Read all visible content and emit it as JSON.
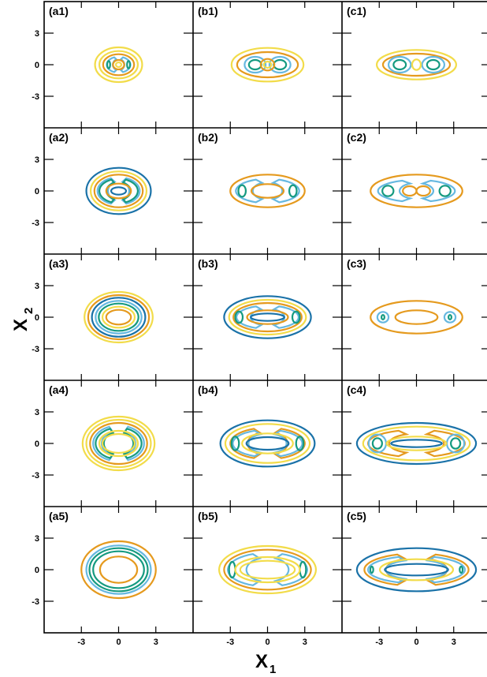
{
  "chart_data": {
    "type": "contour",
    "xlabel": "X",
    "xlabel_sub": "1",
    "ylabel": "X",
    "ylabel_sub": "2",
    "x_ticks": [
      "-3",
      "0",
      "3"
    ],
    "y_ticks": [
      "3",
      "0",
      "-3"
    ],
    "xlim": [
      -6,
      6
    ],
    "ylim": [
      -6,
      6
    ],
    "colors": {
      "blue": "#1a72a8",
      "light_blue": "#66b8e0",
      "green": "#159a80",
      "yellow": "#f2dc4a",
      "orange": "#e59a1e"
    },
    "panels": [
      {
        "label": "(a1)",
        "contours": [
          {
            "c": "yellow",
            "k": "e",
            "cx": 0,
            "cy": 0,
            "rx": 1.9,
            "ry": 1.65
          },
          {
            "c": "yellow",
            "k": "e",
            "cx": 0,
            "cy": 0,
            "rx": 1.55,
            "ry": 1.3
          },
          {
            "c": "orange",
            "k": "e",
            "cx": 0,
            "cy": 0,
            "rx": 1.25,
            "ry": 1.0
          },
          {
            "c": "light_blue",
            "k": "cres",
            "cx": 0,
            "cy": 0,
            "rx": 0.95,
            "ry": 0.75,
            "ir": 0.55
          },
          {
            "c": "green",
            "k": "e",
            "cx": -0.8,
            "cy": 0,
            "rx": 0.12,
            "ry": 0.35
          },
          {
            "c": "green",
            "k": "e",
            "cx": 0.8,
            "cy": 0,
            "rx": 0.12,
            "ry": 0.35
          },
          {
            "c": "orange",
            "k": "e",
            "cx": 0,
            "cy": 0,
            "rx": 0.45,
            "ry": 0.45
          },
          {
            "c": "yellow",
            "k": "e",
            "cx": 0,
            "cy": 0,
            "rx": 0.22,
            "ry": 0.22
          }
        ]
      },
      {
        "label": "(b1)",
        "contours": [
          {
            "c": "yellow",
            "k": "e",
            "cx": 0,
            "cy": 0,
            "rx": 2.9,
            "ry": 1.6
          },
          {
            "c": "orange",
            "k": "e",
            "cx": 0,
            "cy": 0,
            "rx": 2.45,
            "ry": 1.2
          },
          {
            "c": "light_blue",
            "k": "e",
            "cx": -1.0,
            "cy": 0,
            "rx": 0.85,
            "ry": 0.75
          },
          {
            "c": "light_blue",
            "k": "e",
            "cx": 1.0,
            "cy": 0,
            "rx": 0.85,
            "ry": 0.75
          },
          {
            "c": "green",
            "k": "e",
            "cx": -1.0,
            "cy": 0,
            "rx": 0.5,
            "ry": 0.45
          },
          {
            "c": "green",
            "k": "e",
            "cx": 1.0,
            "cy": 0,
            "rx": 0.5,
            "ry": 0.45
          },
          {
            "c": "orange",
            "k": "e",
            "cx": 0,
            "cy": 0,
            "rx": 0.55,
            "ry": 0.55
          },
          {
            "c": "yellow",
            "k": "e",
            "cx": 0,
            "cy": 0,
            "rx": 0.3,
            "ry": 0.3
          }
        ]
      },
      {
        "label": "(c1)",
        "contours": [
          {
            "c": "yellow",
            "k": "e",
            "cx": 0,
            "cy": 0,
            "rx": 3.2,
            "ry": 1.4
          },
          {
            "c": "orange",
            "k": "e",
            "cx": 0,
            "cy": 0,
            "rx": 2.7,
            "ry": 1.05
          },
          {
            "c": "light_blue",
            "k": "e",
            "cx": -1.35,
            "cy": 0,
            "rx": 0.9,
            "ry": 0.75
          },
          {
            "c": "light_blue",
            "k": "e",
            "cx": 1.35,
            "cy": 0,
            "rx": 0.9,
            "ry": 0.75
          },
          {
            "c": "green",
            "k": "e",
            "cx": -1.35,
            "cy": 0,
            "rx": 0.5,
            "ry": 0.45
          },
          {
            "c": "green",
            "k": "e",
            "cx": 1.35,
            "cy": 0,
            "rx": 0.5,
            "ry": 0.45
          },
          {
            "c": "yellow",
            "k": "e",
            "cx": 0,
            "cy": 0,
            "rx": 0.35,
            "ry": 0.5
          }
        ]
      },
      {
        "label": "(a2)",
        "contours": [
          {
            "c": "blue",
            "k": "e",
            "cx": 0,
            "cy": 0,
            "rx": 2.6,
            "ry": 2.2
          },
          {
            "c": "yellow",
            "k": "e",
            "cx": 0,
            "cy": 0,
            "rx": 2.25,
            "ry": 1.85
          },
          {
            "c": "orange",
            "k": "e",
            "cx": 0,
            "cy": 0,
            "rx": 1.95,
            "ry": 1.55
          },
          {
            "c": "light_blue",
            "k": "cres",
            "cx": 0,
            "cy": 0,
            "rx": 1.7,
            "ry": 1.3,
            "ir": 1.0
          },
          {
            "c": "green",
            "k": "cres",
            "cx": 0,
            "cy": 0,
            "rx": 1.55,
            "ry": 1.15,
            "ir": 1.15
          },
          {
            "c": "orange",
            "k": "e",
            "cx": 0,
            "cy": 0,
            "rx": 1.0,
            "ry": 0.7
          },
          {
            "c": "blue",
            "k": "e",
            "cx": 0,
            "cy": 0,
            "rx": 0.6,
            "ry": 0.35
          }
        ]
      },
      {
        "label": "(b2)",
        "contours": [
          {
            "c": "orange",
            "k": "e",
            "cx": 0,
            "cy": 0,
            "rx": 3.0,
            "ry": 1.55
          },
          {
            "c": "light_blue",
            "k": "cres",
            "cx": 0,
            "cy": 0,
            "rx": 2.55,
            "ry": 1.15,
            "ir": 1.4
          },
          {
            "c": "green",
            "k": "e",
            "cx": -2.05,
            "cy": 0,
            "rx": 0.3,
            "ry": 0.55
          },
          {
            "c": "green",
            "k": "e",
            "cx": 2.05,
            "cy": 0,
            "rx": 0.3,
            "ry": 0.55
          },
          {
            "c": "orange",
            "k": "e",
            "cx": 0,
            "cy": 0,
            "rx": 1.3,
            "ry": 0.65
          }
        ]
      },
      {
        "label": "(c2)",
        "contours": [
          {
            "c": "orange",
            "k": "e",
            "cx": 0,
            "cy": 0,
            "rx": 3.7,
            "ry": 1.55
          },
          {
            "c": "light_blue",
            "k": "cres",
            "cx": 0,
            "cy": 0,
            "rx": 3.1,
            "ry": 1.05,
            "ir": 1.6
          },
          {
            "c": "green",
            "k": "e",
            "cx": -2.3,
            "cy": 0,
            "rx": 0.45,
            "ry": 0.5
          },
          {
            "c": "green",
            "k": "e",
            "cx": 2.3,
            "cy": 0,
            "rx": 0.45,
            "ry": 0.5
          },
          {
            "c": "orange",
            "k": "e",
            "cx": -0.55,
            "cy": 0,
            "rx": 0.55,
            "ry": 0.45
          },
          {
            "c": "orange",
            "k": "e",
            "cx": 0.55,
            "cy": 0,
            "rx": 0.55,
            "ry": 0.45
          }
        ]
      },
      {
        "label": "(a3)",
        "contours": [
          {
            "c": "yellow",
            "k": "e",
            "cx": 0,
            "cy": 0,
            "rx": 2.75,
            "ry": 2.4
          },
          {
            "c": "orange",
            "k": "e",
            "cx": 0,
            "cy": 0,
            "rx": 2.45,
            "ry": 2.1
          },
          {
            "c": "blue",
            "k": "e",
            "cx": 0,
            "cy": 0,
            "rx": 2.15,
            "ry": 1.85
          },
          {
            "c": "light_blue",
            "k": "e",
            "cx": 0,
            "cy": 0,
            "rx": 1.85,
            "ry": 1.55
          },
          {
            "c": "green",
            "k": "e",
            "cx": 0,
            "cy": 0,
            "rx": 1.6,
            "ry": 1.3
          },
          {
            "c": "yellow",
            "k": "e",
            "cx": 0,
            "cy": 0,
            "rx": 1.3,
            "ry": 1.0
          },
          {
            "c": "orange",
            "k": "e",
            "cx": 0,
            "cy": 0,
            "rx": 1.0,
            "ry": 0.7
          }
        ]
      },
      {
        "label": "(b3)",
        "contours": [
          {
            "c": "blue",
            "k": "e",
            "cx": 0,
            "cy": 0,
            "rx": 3.5,
            "ry": 2.0
          },
          {
            "c": "yellow",
            "k": "e",
            "cx": 0,
            "cy": 0,
            "rx": 3.1,
            "ry": 1.65
          },
          {
            "c": "orange",
            "k": "e",
            "cx": 0,
            "cy": 0,
            "rx": 2.75,
            "ry": 1.35
          },
          {
            "c": "light_blue",
            "k": "cres",
            "cx": 0,
            "cy": 0,
            "rx": 2.5,
            "ry": 1.1,
            "ir": 1.6
          },
          {
            "c": "green",
            "k": "e",
            "cx": -2.3,
            "cy": 0,
            "rx": 0.3,
            "ry": 0.55
          },
          {
            "c": "green",
            "k": "e",
            "cx": 2.3,
            "cy": 0,
            "rx": 0.3,
            "ry": 0.55
          },
          {
            "c": "orange",
            "k": "e",
            "cx": 0,
            "cy": 0,
            "rx": 1.65,
            "ry": 0.65
          },
          {
            "c": "blue",
            "k": "e",
            "cx": 0,
            "cy": 0,
            "rx": 1.35,
            "ry": 0.35
          }
        ]
      },
      {
        "label": "(c3)",
        "contours": [
          {
            "c": "orange",
            "k": "e",
            "cx": 0,
            "cy": 0,
            "rx": 3.7,
            "ry": 1.55
          },
          {
            "c": "light_blue",
            "k": "e",
            "cx": -2.7,
            "cy": 0,
            "rx": 0.45,
            "ry": 0.5
          },
          {
            "c": "light_blue",
            "k": "e",
            "cx": 2.7,
            "cy": 0,
            "rx": 0.45,
            "ry": 0.5
          },
          {
            "c": "green",
            "k": "e",
            "cx": -2.7,
            "cy": 0,
            "rx": 0.12,
            "ry": 0.22
          },
          {
            "c": "green",
            "k": "e",
            "cx": 2.7,
            "cy": 0,
            "rx": 0.12,
            "ry": 0.22
          },
          {
            "c": "orange",
            "k": "e",
            "cx": 0,
            "cy": 0,
            "rx": 1.7,
            "ry": 0.65
          }
        ]
      },
      {
        "label": "(a4)",
        "contours": [
          {
            "c": "yellow",
            "k": "e",
            "cx": 0,
            "cy": 0,
            "rx": 2.9,
            "ry": 2.55
          },
          {
            "c": "yellow",
            "k": "e",
            "cx": 0,
            "cy": 0,
            "rx": 2.6,
            "ry": 2.25
          },
          {
            "c": "orange",
            "k": "e",
            "cx": 0,
            "cy": 0,
            "rx": 2.3,
            "ry": 1.95
          },
          {
            "c": "light_blue",
            "k": "cres",
            "cx": 0,
            "cy": 0,
            "rx": 2.05,
            "ry": 1.7,
            "ir": 1.6
          },
          {
            "c": "green",
            "k": "cres",
            "cx": 0,
            "cy": 0,
            "rx": 1.85,
            "ry": 1.5,
            "ir": 1.4
          },
          {
            "c": "yellow",
            "k": "e",
            "cx": 0,
            "cy": 0,
            "rx": 1.55,
            "ry": 1.2
          },
          {
            "c": "yellow",
            "k": "e",
            "cx": 0,
            "cy": 0,
            "rx": 1.3,
            "ry": 0.9
          }
        ]
      },
      {
        "label": "(b4)",
        "contours": [
          {
            "c": "blue",
            "k": "e",
            "cx": 0,
            "cy": 0,
            "rx": 3.8,
            "ry": 2.2
          },
          {
            "c": "yellow",
            "k": "e",
            "cx": 0,
            "cy": 0,
            "rx": 3.4,
            "ry": 1.85
          },
          {
            "c": "orange",
            "k": "cres",
            "cx": 0,
            "cy": 0,
            "rx": 3.0,
            "ry": 1.5,
            "ir": 1.9
          },
          {
            "c": "light_blue",
            "k": "cres",
            "cx": 0,
            "cy": 0,
            "rx": 2.8,
            "ry": 1.3,
            "ir": 1.8
          },
          {
            "c": "green",
            "k": "e",
            "cx": -2.6,
            "cy": 0,
            "rx": 0.3,
            "ry": 0.65
          },
          {
            "c": "green",
            "k": "e",
            "cx": 2.6,
            "cy": 0,
            "rx": 0.3,
            "ry": 0.65
          },
          {
            "c": "yellow",
            "k": "e",
            "cx": 0,
            "cy": 0,
            "rx": 2.05,
            "ry": 0.95
          },
          {
            "c": "blue",
            "k": "e",
            "cx": 0,
            "cy": 0,
            "rx": 1.7,
            "ry": 0.6
          }
        ]
      },
      {
        "label": "(c4)",
        "contours": [
          {
            "c": "blue",
            "k": "e",
            "cx": 0,
            "cy": 0,
            "rx": 4.8,
            "ry": 1.95
          },
          {
            "c": "yellow",
            "k": "e",
            "cx": 0,
            "cy": 0,
            "rx": 4.3,
            "ry": 1.6
          },
          {
            "c": "orange",
            "k": "cres",
            "cx": 0,
            "cy": 0,
            "rx": 3.9,
            "ry": 1.3,
            "ir": 2.6
          },
          {
            "c": "light_blue",
            "k": "e",
            "cx": -3.15,
            "cy": 0,
            "rx": 0.7,
            "ry": 0.85
          },
          {
            "c": "light_blue",
            "k": "e",
            "cx": 3.15,
            "cy": 0,
            "rx": 0.7,
            "ry": 0.85
          },
          {
            "c": "green",
            "k": "e",
            "cx": -3.15,
            "cy": 0,
            "rx": 0.38,
            "ry": 0.5
          },
          {
            "c": "green",
            "k": "e",
            "cx": 3.15,
            "cy": 0,
            "rx": 0.38,
            "ry": 0.5
          },
          {
            "c": "yellow",
            "k": "e",
            "cx": 0,
            "cy": 0,
            "rx": 2.4,
            "ry": 0.65
          },
          {
            "c": "blue",
            "k": "e",
            "cx": 0,
            "cy": 0,
            "rx": 2.05,
            "ry": 0.35
          }
        ]
      },
      {
        "label": "(a5)",
        "contours": [
          {
            "c": "orange",
            "k": "e",
            "cx": 0,
            "cy": 0,
            "rx": 3.0,
            "ry": 2.7
          },
          {
            "c": "light_blue",
            "k": "e",
            "cx": 0,
            "cy": 0,
            "rx": 2.6,
            "ry": 2.3
          },
          {
            "c": "green",
            "k": "e",
            "cx": 0,
            "cy": 0,
            "rx": 2.35,
            "ry": 2.05
          },
          {
            "c": "green",
            "k": "e",
            "cx": 0,
            "cy": 0,
            "rx": 2.05,
            "ry": 1.75
          },
          {
            "c": "orange",
            "k": "e",
            "cx": 0,
            "cy": 0,
            "rx": 1.5,
            "ry": 1.25
          }
        ]
      },
      {
        "label": "(b5)",
        "contours": [
          {
            "c": "yellow",
            "k": "e",
            "cx": 0,
            "cy": 0,
            "rx": 3.9,
            "ry": 2.25
          },
          {
            "c": "orange",
            "k": "e",
            "cx": 0,
            "cy": 0,
            "rx": 3.5,
            "ry": 1.9
          },
          {
            "c": "light_blue",
            "k": "cres",
            "cx": 0,
            "cy": 0,
            "rx": 3.2,
            "ry": 1.6,
            "ir": 2.0
          },
          {
            "c": "green",
            "k": "e",
            "cx": -2.85,
            "cy": 0,
            "rx": 0.25,
            "ry": 0.75
          },
          {
            "c": "green",
            "k": "e",
            "cx": 2.85,
            "cy": 0,
            "rx": 0.25,
            "ry": 0.75
          },
          {
            "c": "yellow",
            "k": "e",
            "cx": 0,
            "cy": 0,
            "rx": 2.6,
            "ry": 1.2
          },
          {
            "c": "yellow",
            "k": "e",
            "cx": 0,
            "cy": 0,
            "rx": 2.2,
            "ry": 0.85
          }
        ]
      },
      {
        "label": "(c5)",
        "contours": [
          {
            "c": "blue",
            "k": "e",
            "cx": 0,
            "cy": 0,
            "rx": 4.8,
            "ry": 2.05
          },
          {
            "c": "orange",
            "k": "cres",
            "cx": 0,
            "cy": 0,
            "rx": 4.2,
            "ry": 1.55,
            "ir": 2.9
          },
          {
            "c": "light_blue",
            "k": "cres",
            "cx": 0,
            "cy": 0,
            "rx": 3.9,
            "ry": 1.3,
            "ir": 2.9
          },
          {
            "c": "green",
            "k": "e",
            "cx": -3.6,
            "cy": 0,
            "rx": 0.12,
            "ry": 0.3
          },
          {
            "c": "green",
            "k": "e",
            "cx": 3.6,
            "cy": 0,
            "rx": 0.12,
            "ry": 0.3
          },
          {
            "c": "yellow",
            "k": "e",
            "cx": 0,
            "cy": 0,
            "rx": 2.95,
            "ry": 1.0
          },
          {
            "c": "blue",
            "k": "e",
            "cx": 0,
            "cy": 0,
            "rx": 2.55,
            "ry": 0.55
          }
        ]
      }
    ]
  }
}
